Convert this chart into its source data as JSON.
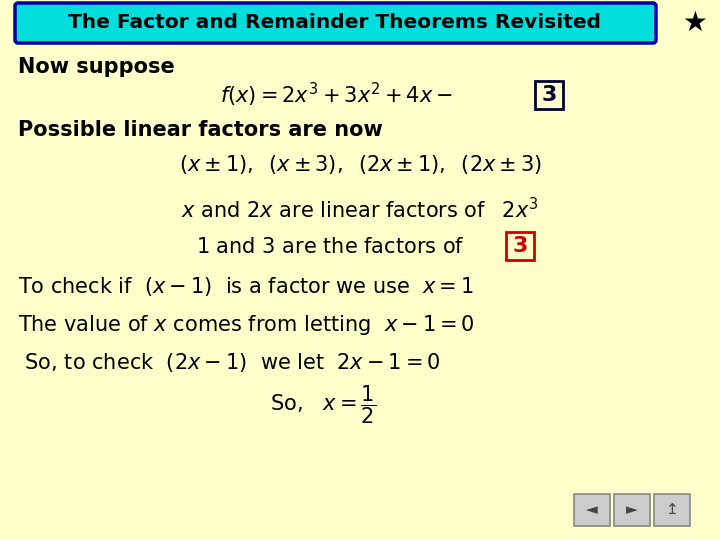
{
  "background_color": "#ffffcc",
  "title_text": "The Factor and Remainder Theorems Revisited",
  "title_box_color": "#00dddd",
  "title_border_color": "#0000aa",
  "title_text_color": "#000000",
  "star_color": "#000000",
  "main_text_color": "#000000",
  "red_color": "#cc0000",
  "box3_border_color": "#000066",
  "nav_bg": "#cccccc",
  "nav_border": "#888888"
}
